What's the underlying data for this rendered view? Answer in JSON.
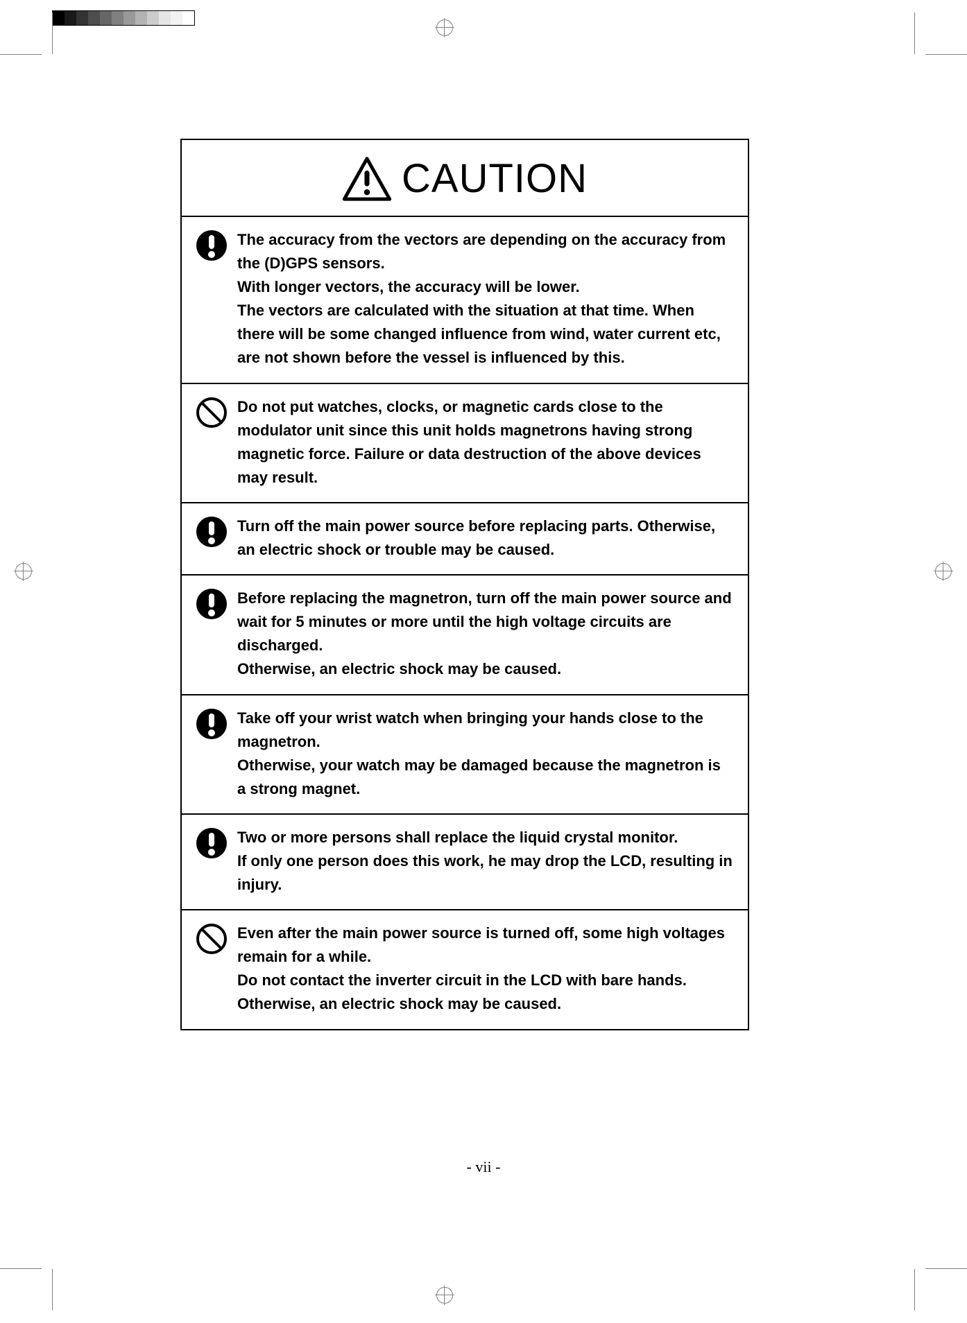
{
  "title": "CAUTION",
  "page_number": "- vii -",
  "grayscale_bar": [
    "#000000",
    "#1a1a1a",
    "#333333",
    "#4d4d4d",
    "#666666",
    "#808080",
    "#999999",
    "#b3b3b3",
    "#cccccc",
    "#e5e5e5",
    "#f2f2f2",
    "#ffffff"
  ],
  "items": [
    {
      "icon": "exclaim",
      "text": "The accuracy from the vectors are depending on the accuracy from the (D)GPS sensors.\nWith longer vectors, the accuracy will be lower.\nThe vectors are calculated with the situation at that time. When there will be some changed influence from wind, water current etc, are not shown before the vessel is influenced by this."
    },
    {
      "icon": "prohibit",
      "text": "Do not put watches, clocks, or magnetic cards close to the modulator unit since this unit holds magnetrons having strong magnetic force.   Failure or data destruction of the above devices may result."
    },
    {
      "icon": "exclaim",
      "text": "Turn off the main power source before replacing parts. Otherwise, an electric shock or trouble may be caused."
    },
    {
      "icon": "exclaim",
      "text": "Before replacing the magnetron, turn off the main power source and wait for 5 minutes or more until the high voltage circuits are discharged.\nOtherwise, an electric shock may be caused."
    },
    {
      "icon": "exclaim",
      "text": "Take off your wrist watch when bringing your hands close to the magnetron.\nOtherwise, your watch may be damaged because the magnetron is a strong magnet."
    },
    {
      "icon": "exclaim",
      "text": "Two or more persons shall replace the liquid crystal monitor.\nIf only one person does this work, he may drop the LCD, resulting in injury."
    },
    {
      "icon": "prohibit",
      "text": "Even after the main power source is turned off, some high voltages remain for a while.\nDo not contact the inverter circuit in the LCD with bare hands.   Otherwise, an electric shock may be caused."
    }
  ]
}
